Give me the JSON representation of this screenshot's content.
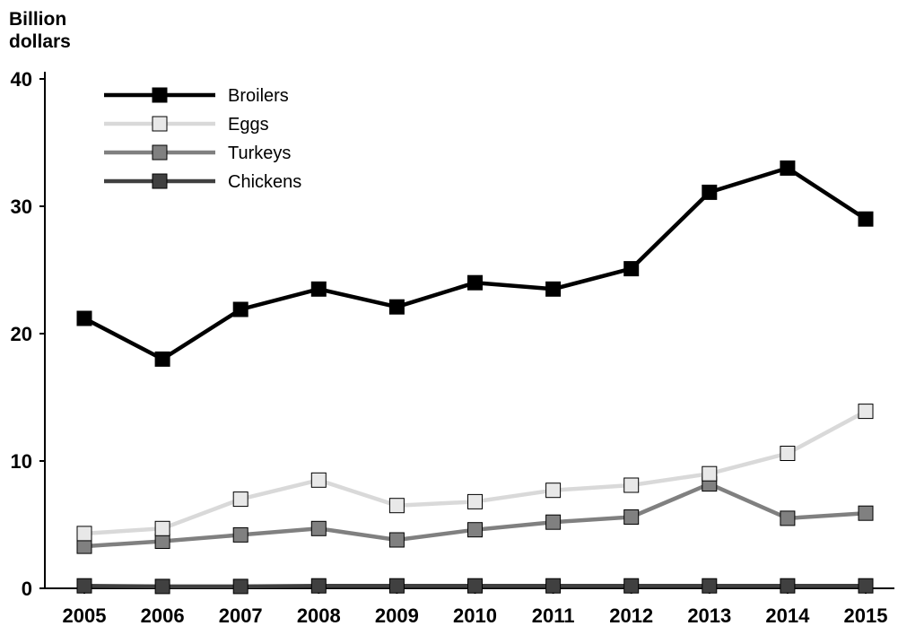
{
  "chart_data": {
    "type": "line",
    "ylabel_lines": [
      "Billion",
      "dollars"
    ],
    "xlabel": "",
    "x": [
      "2005",
      "2006",
      "2007",
      "2008",
      "2009",
      "2010",
      "2011",
      "2012",
      "2013",
      "2014",
      "2015"
    ],
    "ylim": [
      0,
      40
    ],
    "yticks": [
      0,
      10,
      20,
      30,
      40
    ],
    "grid": false,
    "legend": "top-left",
    "series": [
      {
        "name": "Broilers",
        "color": "#000000",
        "marker_fill": "#000000",
        "values": [
          21.2,
          18.0,
          21.9,
          23.5,
          22.1,
          24.0,
          23.5,
          25.1,
          31.1,
          33.0,
          29.0
        ]
      },
      {
        "name": "Eggs",
        "color": "#d9d9d9",
        "marker_fill": "#e8e8e8",
        "values": [
          4.3,
          4.7,
          7.0,
          8.5,
          6.5,
          6.8,
          7.7,
          8.1,
          9.0,
          10.6,
          13.9
        ]
      },
      {
        "name": "Turkeys",
        "color": "#808080",
        "marker_fill": "#808080",
        "values": [
          3.3,
          3.7,
          4.2,
          4.7,
          3.8,
          4.6,
          5.2,
          5.6,
          8.2,
          5.5,
          5.9
        ]
      },
      {
        "name": "Chickens",
        "color": "#404040",
        "marker_fill": "#404040",
        "values": [
          0.2,
          0.15,
          0.15,
          0.2,
          0.2,
          0.2,
          0.2,
          0.2,
          0.2,
          0.2,
          0.2
        ]
      }
    ]
  }
}
